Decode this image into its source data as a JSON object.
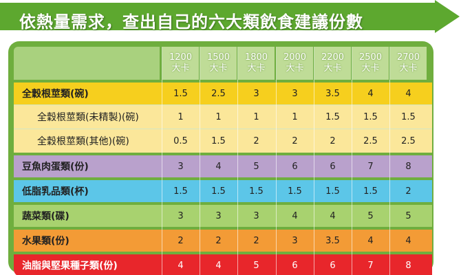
{
  "title": "依熱量需求，查出自己的六大類飲食建議份數",
  "colors": {
    "banner": "#5da82f",
    "frame": "#6fae3e",
    "header": "#bfdc97",
    "grains": "#f6cf1e",
    "grains_sub": "#fbe79a",
    "protein": "#b9a1cc",
    "dairy": "#5cc6e8",
    "vegetables": "#a8d26f",
    "fruit": "#f39b36",
    "oils": "#e8262b"
  },
  "header": {
    "columns": [
      {
        "kcal": "1200",
        "unit": "大卡"
      },
      {
        "kcal": "1500",
        "unit": "大卡"
      },
      {
        "kcal": "1800",
        "unit": "大卡"
      },
      {
        "kcal": "2000",
        "unit": "大卡"
      },
      {
        "kcal": "2200",
        "unit": "大卡"
      },
      {
        "kcal": "2500",
        "unit": "大卡"
      },
      {
        "kcal": "2700",
        "unit": "大卡"
      }
    ]
  },
  "rows": [
    {
      "label": "全穀根莖類(碗)",
      "values": [
        "1.5",
        "2.5",
        "3",
        "3",
        "3.5",
        "4",
        "4"
      ]
    },
    {
      "label": "全穀根莖類(未精製)(碗)",
      "values": [
        "1",
        "1",
        "1",
        "1",
        "1.5",
        "1.5",
        "1.5"
      ]
    },
    {
      "label": "全穀根莖類(其他)(碗)",
      "values": [
        "0.5",
        "1.5",
        "2",
        "2",
        "2",
        "2.5",
        "2.5"
      ]
    },
    {
      "label": "豆魚肉蛋類(份)",
      "values": [
        "3",
        "4",
        "5",
        "6",
        "6",
        "7",
        "8"
      ]
    },
    {
      "label": "低脂乳品類(杯)",
      "values": [
        "1.5",
        "1.5",
        "1.5",
        "1.5",
        "1.5",
        "1.5",
        "2"
      ]
    },
    {
      "label": "蔬菜類(碟)",
      "values": [
        "3",
        "3",
        "3",
        "4",
        "4",
        "5",
        "5"
      ]
    },
    {
      "label": "水果類(份)",
      "values": [
        "2",
        "2",
        "2",
        "3",
        "3.5",
        "4",
        "4"
      ]
    },
    {
      "label": "油脂與堅果種子類(份)",
      "values": [
        "4",
        "4",
        "5",
        "6",
        "6",
        "7",
        "8"
      ]
    }
  ]
}
